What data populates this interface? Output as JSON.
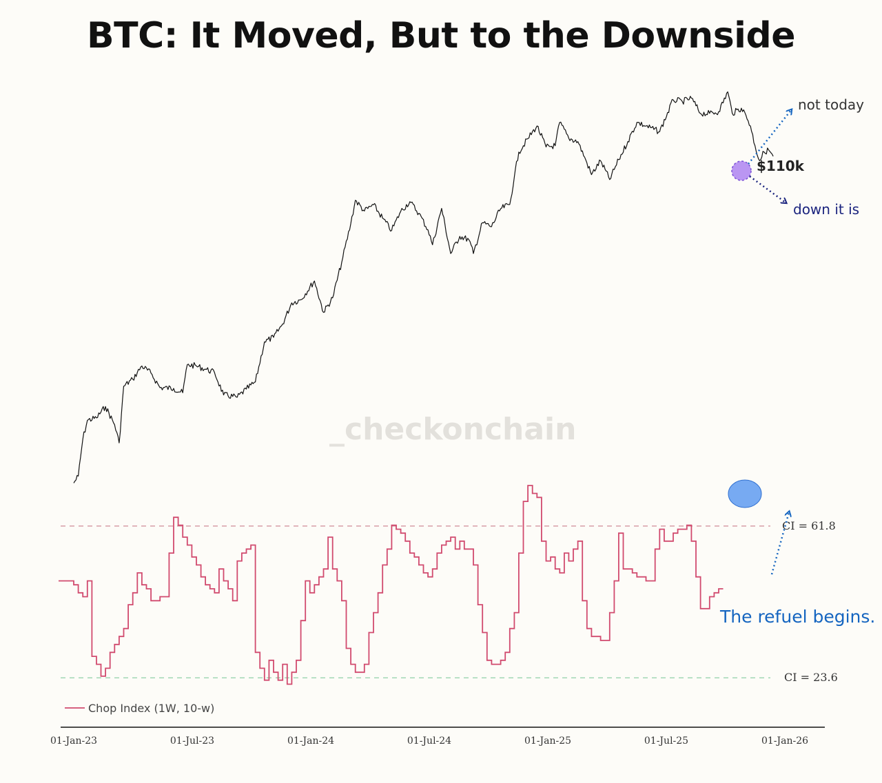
{
  "chart_data": {
    "type": "line",
    "title": "BTC: It Moved, But to the Downside",
    "watermark": "_checkonchain",
    "x_tick_labels": [
      "01-Jan-23",
      "01-Jul-23",
      "01-Jan-24",
      "01-Jul-24",
      "01-Jan-25",
      "01-Jul-25",
      "01-Jan-26"
    ],
    "x_range": [
      "2023-01-01",
      "2026-01-01"
    ],
    "legend": {
      "placement": "bottom-left",
      "label": "Chop Index (1W, 10-w)"
    },
    "reference_lines": [
      {
        "label": "CI = 61.8",
        "value": 61.8,
        "color": "#d08a96"
      },
      {
        "label": "CI = 23.6",
        "value": 23.6,
        "color": "#8fcfa6"
      }
    ],
    "series": [
      {
        "name": "BTC Price",
        "color": "#111111",
        "scale": "log",
        "y_range": [
          15000,
          130000
        ],
        "points": [
          [
            "2023-01-01",
            16600
          ],
          [
            "2023-01-08",
            17200
          ],
          [
            "2023-01-15",
            20800
          ],
          [
            "2023-01-22",
            22900
          ],
          [
            "2023-02-05",
            23200
          ],
          [
            "2023-02-19",
            24600
          ],
          [
            "2023-03-05",
            22400
          ],
          [
            "2023-03-12",
            20400
          ],
          [
            "2023-03-19",
            27300
          ],
          [
            "2023-04-02",
            28300
          ],
          [
            "2023-04-16",
            30300
          ],
          [
            "2023-04-30",
            29200
          ],
          [
            "2023-05-14",
            27100
          ],
          [
            "2023-06-04",
            27000
          ],
          [
            "2023-06-18",
            26400
          ],
          [
            "2023-06-25",
            30500
          ],
          [
            "2023-07-09",
            30300
          ],
          [
            "2023-07-23",
            29800
          ],
          [
            "2023-08-06",
            29300
          ],
          [
            "2023-08-20",
            26100
          ],
          [
            "2023-09-10",
            25800
          ],
          [
            "2023-09-24",
            26900
          ],
          [
            "2023-10-08",
            27900
          ],
          [
            "2023-10-22",
            34300
          ],
          [
            "2023-11-05",
            35100
          ],
          [
            "2023-11-19",
            37600
          ],
          [
            "2023-12-03",
            41900
          ],
          [
            "2023-12-17",
            42600
          ],
          [
            "2024-01-07",
            46900
          ],
          [
            "2024-01-21",
            39900
          ],
          [
            "2024-02-04",
            43000
          ],
          [
            "2024-02-18",
            51600
          ],
          [
            "2024-03-03",
            63000
          ],
          [
            "2024-03-10",
            71000
          ],
          [
            "2024-03-24",
            67200
          ],
          [
            "2024-04-07",
            69400
          ],
          [
            "2024-04-21",
            64800
          ],
          [
            "2024-05-05",
            60800
          ],
          [
            "2024-05-19",
            67100
          ],
          [
            "2024-06-02",
            70500
          ],
          [
            "2024-06-16",
            66400
          ],
          [
            "2024-06-30",
            61000
          ],
          [
            "2024-07-07",
            56500
          ],
          [
            "2024-07-21",
            68100
          ],
          [
            "2024-08-04",
            54000
          ],
          [
            "2024-08-18",
            59000
          ],
          [
            "2024-09-01",
            58000
          ],
          [
            "2024-09-08",
            54000
          ],
          [
            "2024-09-22",
            63300
          ],
          [
            "2024-10-06",
            62000
          ],
          [
            "2024-10-20",
            68000
          ],
          [
            "2024-11-03",
            69500
          ],
          [
            "2024-11-10",
            80000
          ],
          [
            "2024-11-17",
            91000
          ],
          [
            "2024-12-01",
            97500
          ],
          [
            "2024-12-15",
            104000
          ],
          [
            "2024-12-29",
            93400
          ],
          [
            "2025-01-12",
            94000
          ],
          [
            "2025-01-19",
            106000
          ],
          [
            "2025-02-02",
            97700
          ],
          [
            "2025-02-16",
            96000
          ],
          [
            "2025-03-02",
            86000
          ],
          [
            "2025-03-09",
            81000
          ],
          [
            "2025-03-23",
            87000
          ],
          [
            "2025-04-06",
            79000
          ],
          [
            "2025-04-20",
            87500
          ],
          [
            "2025-05-04",
            96000
          ],
          [
            "2025-05-18",
            106000
          ],
          [
            "2025-06-01",
            104000
          ],
          [
            "2025-06-22",
            101000
          ],
          [
            "2025-07-13",
            119000
          ],
          [
            "2025-07-27",
            118000
          ],
          [
            "2025-08-10",
            120000
          ],
          [
            "2025-08-24",
            111000
          ],
          [
            "2025-09-07",
            111000
          ],
          [
            "2025-09-21",
            112000
          ],
          [
            "2025-10-05",
            124000
          ],
          [
            "2025-10-12",
            111000
          ],
          [
            "2025-10-26",
            114000
          ],
          [
            "2025-11-02",
            110000
          ],
          [
            "2025-11-09",
            104000
          ],
          [
            "2025-11-16",
            94000
          ],
          [
            "2025-11-23",
            87000
          ],
          [
            "2025-11-30",
            91000
          ],
          [
            "2025-12-07",
            92000
          ],
          [
            "2025-12-14",
            89000
          ]
        ]
      },
      {
        "name": "Chop Index (1W, 10-w)",
        "color": "#d14a6e",
        "y_range": [
          20,
          85
        ],
        "points": [
          [
            "2023-01-01",
            48
          ],
          [
            "2023-01-08",
            47
          ],
          [
            "2023-01-15",
            45
          ],
          [
            "2023-01-22",
            44
          ],
          [
            "2023-01-29",
            48
          ],
          [
            "2023-02-05",
            29
          ],
          [
            "2023-02-12",
            27
          ],
          [
            "2023-02-19",
            24
          ],
          [
            "2023-02-26",
            26
          ],
          [
            "2023-03-05",
            30
          ],
          [
            "2023-03-12",
            32
          ],
          [
            "2023-03-19",
            34
          ],
          [
            "2023-03-26",
            36
          ],
          [
            "2023-04-02",
            42
          ],
          [
            "2023-04-09",
            45
          ],
          [
            "2023-04-16",
            50
          ],
          [
            "2023-04-23",
            47
          ],
          [
            "2023-04-30",
            46
          ],
          [
            "2023-05-07",
            43
          ],
          [
            "2023-05-14",
            43
          ],
          [
            "2023-05-21",
            44
          ],
          [
            "2023-05-28",
            44
          ],
          [
            "2023-06-04",
            55
          ],
          [
            "2023-06-11",
            64
          ],
          [
            "2023-06-18",
            62
          ],
          [
            "2023-06-25",
            59
          ],
          [
            "2023-07-02",
            57
          ],
          [
            "2023-07-09",
            54
          ],
          [
            "2023-07-16",
            52
          ],
          [
            "2023-07-23",
            49
          ],
          [
            "2023-07-30",
            47
          ],
          [
            "2023-08-06",
            46
          ],
          [
            "2023-08-13",
            45
          ],
          [
            "2023-08-20",
            51
          ],
          [
            "2023-08-27",
            48
          ],
          [
            "2023-09-03",
            46
          ],
          [
            "2023-09-10",
            43
          ],
          [
            "2023-09-17",
            53
          ],
          [
            "2023-09-24",
            55
          ],
          [
            "2023-10-01",
            56
          ],
          [
            "2023-10-08",
            57
          ],
          [
            "2023-10-15",
            30
          ],
          [
            "2023-10-22",
            26
          ],
          [
            "2023-10-29",
            23
          ],
          [
            "2023-11-05",
            28
          ],
          [
            "2023-11-12",
            25
          ],
          [
            "2023-11-19",
            23
          ],
          [
            "2023-11-26",
            27
          ],
          [
            "2023-12-03",
            22
          ],
          [
            "2023-12-10",
            25
          ],
          [
            "2023-12-17",
            28
          ],
          [
            "2023-12-24",
            38
          ],
          [
            "2023-12-31",
            48
          ],
          [
            "2024-01-07",
            45
          ],
          [
            "2024-01-14",
            47
          ],
          [
            "2024-01-21",
            49
          ],
          [
            "2024-01-28",
            51
          ],
          [
            "2024-02-04",
            59
          ],
          [
            "2024-02-11",
            51
          ],
          [
            "2024-02-18",
            48
          ],
          [
            "2024-02-25",
            43
          ],
          [
            "2024-03-03",
            31
          ],
          [
            "2024-03-10",
            27
          ],
          [
            "2024-03-17",
            25
          ],
          [
            "2024-03-24",
            25
          ],
          [
            "2024-03-31",
            27
          ],
          [
            "2024-04-07",
            35
          ],
          [
            "2024-04-14",
            40
          ],
          [
            "2024-04-21",
            45
          ],
          [
            "2024-04-28",
            52
          ],
          [
            "2024-05-05",
            56
          ],
          [
            "2024-05-12",
            62
          ],
          [
            "2024-05-19",
            61
          ],
          [
            "2024-05-26",
            60
          ],
          [
            "2024-06-02",
            58
          ],
          [
            "2024-06-09",
            55
          ],
          [
            "2024-06-16",
            54
          ],
          [
            "2024-06-23",
            52
          ],
          [
            "2024-06-30",
            50
          ],
          [
            "2024-07-07",
            49
          ],
          [
            "2024-07-14",
            51
          ],
          [
            "2024-07-21",
            55
          ],
          [
            "2024-07-28",
            57
          ],
          [
            "2024-08-04",
            58
          ],
          [
            "2024-08-11",
            59
          ],
          [
            "2024-08-18",
            56
          ],
          [
            "2024-08-25",
            58
          ],
          [
            "2024-09-01",
            56
          ],
          [
            "2024-09-08",
            56
          ],
          [
            "2024-09-15",
            52
          ],
          [
            "2024-09-22",
            42
          ],
          [
            "2024-09-29",
            35
          ],
          [
            "2024-10-06",
            28
          ],
          [
            "2024-10-13",
            27
          ],
          [
            "2024-10-20",
            27
          ],
          [
            "2024-10-27",
            28
          ],
          [
            "2024-11-03",
            30
          ],
          [
            "2024-11-10",
            36
          ],
          [
            "2024-11-17",
            40
          ],
          [
            "2024-11-24",
            55
          ],
          [
            "2024-12-01",
            68
          ],
          [
            "2024-12-08",
            72
          ],
          [
            "2024-12-15",
            70
          ],
          [
            "2024-12-22",
            69
          ],
          [
            "2024-12-29",
            58
          ],
          [
            "2025-01-05",
            53
          ],
          [
            "2025-01-12",
            54
          ],
          [
            "2025-01-19",
            51
          ],
          [
            "2025-01-26",
            50
          ],
          [
            "2025-02-02",
            55
          ],
          [
            "2025-02-09",
            53
          ],
          [
            "2025-02-16",
            56
          ],
          [
            "2025-02-23",
            58
          ],
          [
            "2025-03-02",
            43
          ],
          [
            "2025-03-09",
            36
          ],
          [
            "2025-03-16",
            34
          ],
          [
            "2025-03-23",
            34
          ],
          [
            "2025-04-06",
            33
          ],
          [
            "2025-04-13",
            40
          ],
          [
            "2025-04-20",
            48
          ],
          [
            "2025-04-27",
            60
          ],
          [
            "2025-05-04",
            51
          ],
          [
            "2025-05-11",
            51
          ],
          [
            "2025-05-18",
            50
          ],
          [
            "2025-05-25",
            49
          ],
          [
            "2025-06-01",
            49
          ],
          [
            "2025-06-08",
            48
          ],
          [
            "2025-06-15",
            48
          ],
          [
            "2025-06-22",
            56
          ],
          [
            "2025-06-29",
            61
          ],
          [
            "2025-07-06",
            58
          ],
          [
            "2025-07-13",
            58
          ],
          [
            "2025-07-20",
            60
          ],
          [
            "2025-07-27",
            61
          ],
          [
            "2025-08-03",
            61
          ],
          [
            "2025-08-10",
            62
          ],
          [
            "2025-08-17",
            58
          ],
          [
            "2025-08-24",
            49
          ],
          [
            "2025-08-31",
            41
          ],
          [
            "2025-09-07",
            41
          ],
          [
            "2025-09-14",
            44
          ],
          [
            "2025-09-21",
            45
          ],
          [
            "2025-09-28",
            46
          ]
        ]
      }
    ],
    "annotations": [
      {
        "label": "not today",
        "color": "#1565c0"
      },
      {
        "label": "$110k",
        "color": "#222222"
      },
      {
        "label": "down it is",
        "color": "#1a237e"
      },
      {
        "label": "The refuel begins.",
        "color": "#1565c0"
      }
    ]
  }
}
